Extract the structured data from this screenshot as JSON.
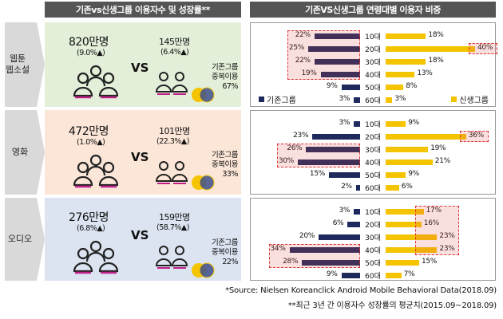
{
  "header_left": "기존vs신생그룹 이용자수 및 성장률**",
  "header_right": "기존VS신생그룹 연령대별 이용자 비중",
  "vs_label": "VS",
  "overlap_label_1": "기존그룹",
  "overlap_label_2": "중복이용",
  "legend": {
    "existing": "기존그룹",
    "new": "신생그룹"
  },
  "colors": {
    "existing": "#1f2a5c",
    "new": "#f5c400",
    "highlight": "#e03030"
  },
  "rows": [
    {
      "label_1": "웹툰",
      "label_2": "웹소설",
      "existing_users": "820만명",
      "existing_growth": "(9.0%▲)",
      "new_users": "145만명",
      "new_growth": "(6.4%▲)",
      "overlap": "67%"
    },
    {
      "label_1": "영화",
      "label_2": "",
      "existing_users": "472만명",
      "existing_growth": "(1.0%▲)",
      "new_users": "101만명",
      "new_growth": "(22.3%▲)",
      "overlap": "33%"
    },
    {
      "label_1": "오디오",
      "label_2": "",
      "existing_users": "276만명",
      "existing_growth": "(6.8%▲)",
      "new_users": "159만명",
      "new_growth": "(58.7%▲)",
      "overlap": "22%"
    }
  ],
  "chart_data": [
    {
      "type": "bar",
      "title": "웹툰 웹소설",
      "categories": [
        "10대",
        "20대",
        "30대",
        "40대",
        "50대",
        "60대"
      ],
      "series": [
        {
          "name": "기존그룹",
          "values": [
            22,
            25,
            22,
            19,
            9,
            3
          ]
        },
        {
          "name": "신생그룹",
          "values": [
            18,
            40,
            18,
            13,
            8,
            3
          ]
        }
      ],
      "value_labels": {
        "existing": [
          "22%",
          "25%",
          "22%",
          "19%",
          "9%",
          "3%"
        ],
        "new": [
          "18%",
          "40%",
          "18%",
          "13%",
          "8%",
          "3%"
        ]
      },
      "highlight": {
        "existing": [
          0,
          1,
          2,
          3
        ],
        "new": [
          1
        ]
      }
    },
    {
      "type": "bar",
      "title": "영화",
      "categories": [
        "10대",
        "20대",
        "30대",
        "40대",
        "50대",
        "60대"
      ],
      "series": [
        {
          "name": "기존그룹",
          "values": [
            3,
            23,
            26,
            30,
            15,
            2
          ]
        },
        {
          "name": "신생그룹",
          "values": [
            9,
            36,
            19,
            21,
            9,
            6
          ]
        }
      ],
      "value_labels": {
        "existing": [
          "3%",
          "23%",
          "26%",
          "30%",
          "15%",
          "2%"
        ],
        "new": [
          "9%",
          "36%",
          "19%",
          "21%",
          "9%",
          "6%"
        ]
      },
      "highlight": {
        "existing": [
          2,
          3
        ],
        "new": [
          1
        ]
      }
    },
    {
      "type": "bar",
      "title": "오디오",
      "categories": [
        "10대",
        "20대",
        "30대",
        "40대",
        "50대",
        "60대"
      ],
      "series": [
        {
          "name": "기존그룹",
          "values": [
            3,
            6,
            20,
            34,
            28,
            9
          ]
        },
        {
          "name": "신생그룹",
          "values": [
            17,
            16,
            23,
            23,
            15,
            7
          ]
        }
      ],
      "value_labels": {
        "existing": [
          "3%",
          "6%",
          "20%",
          "34%",
          "28%",
          "9%"
        ],
        "new": [
          "17%",
          "16%",
          "23%",
          "23%",
          "15%",
          "7%"
        ]
      },
      "highlight": {
        "existing": [
          3,
          4
        ],
        "new": [
          0,
          1,
          2,
          3
        ]
      }
    }
  ],
  "footnote_1": "*Source: Nielsen Koreanclick Android Mobile Behavioral Data(2018.09)",
  "footnote_2": "**최근 3년 간 이용자수 성장률의 평균치(2015.09~2018.09)"
}
